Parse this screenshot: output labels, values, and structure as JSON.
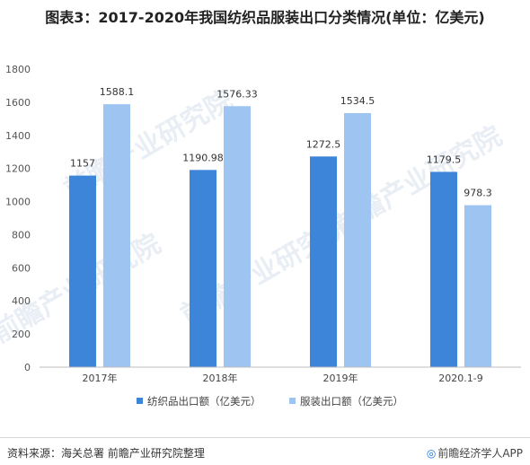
{
  "title": "图表3：2017-2020年我国纺织品服装出口分类情况(单位：亿美元)",
  "chart_data": {
    "type": "bar",
    "title": "图表3：2017-2020年我国纺织品服装出口分类情况(单位：亿美元)",
    "categories": [
      "2017年",
      "2018年",
      "2019年",
      "2020.1-9"
    ],
    "series": [
      {
        "name": "纺织品出口额（亿美元）",
        "values": [
          1157,
          1190.98,
          1272.5,
          1179.5
        ],
        "labels": [
          "1157",
          "1190.98",
          "1272.5",
          "1179.5"
        ],
        "color": "#3d85d8"
      },
      {
        "name": "服装出口额（亿美元）",
        "values": [
          1588.1,
          1576.33,
          1534.5,
          978.3
        ],
        "labels": [
          "1588.1",
          "1576.33",
          "1534.5",
          "978.3"
        ],
        "color": "#9ec4f2"
      }
    ],
    "y_ticks": [
      0,
      200,
      400,
      600,
      800,
      1000,
      1200,
      1400,
      1600,
      1800
    ],
    "ylim": [
      0,
      1800
    ],
    "grid": false,
    "legend_position": "bottom"
  },
  "watermark": {
    "text": "前瞻产业研究院"
  },
  "footer": {
    "source": "资料来源：海关总署 前瞻产业研究院整理",
    "brand_mark": "◎",
    "brand": "前瞻经济学人APP"
  }
}
